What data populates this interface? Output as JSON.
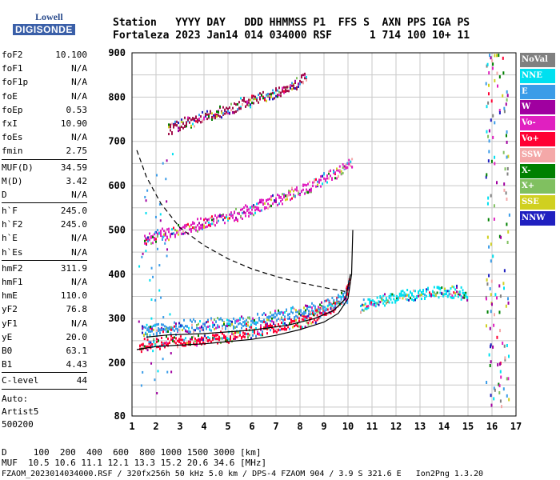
{
  "logo": {
    "line1": "Lowell",
    "line2": "DIGISONDE"
  },
  "header": {
    "line1": "Station   YYYY DAY   DDD HHMMSS P1  FFS S  AXN PPS IGA PS",
    "line2": "Fortaleza 2023 Jan14 014 034000 RSF      1 714 100 10+ 11"
  },
  "params": [
    {
      "name": "foF2",
      "value": "10.100"
    },
    {
      "name": "foF1",
      "value": "N/A"
    },
    {
      "name": "foF1p",
      "value": "N/A"
    },
    {
      "name": "foE",
      "value": "N/A"
    },
    {
      "name": "foEp",
      "value": "0.53"
    },
    {
      "name": "fxI",
      "value": "10.90"
    },
    {
      "name": "foEs",
      "value": "N/A"
    },
    {
      "name": "fmin",
      "value": "2.75"
    },
    {
      "sep": true
    },
    {
      "name": "MUF(D)",
      "value": "34.59"
    },
    {
      "name": "M(D)",
      "value": "3.42"
    },
    {
      "name": "D",
      "value": "N/A"
    },
    {
      "sep": true
    },
    {
      "name": "h`F",
      "value": "245.0"
    },
    {
      "name": "h`F2",
      "value": "245.0"
    },
    {
      "name": "h`E",
      "value": "N/A"
    },
    {
      "name": "h`Es",
      "value": "N/A"
    },
    {
      "sep": true
    },
    {
      "name": "hmF2",
      "value": "311.9"
    },
    {
      "name": "hmF1",
      "value": "N/A"
    },
    {
      "name": "hmE",
      "value": "110.0"
    },
    {
      "name": "yF2",
      "value": "76.8"
    },
    {
      "name": "yF1",
      "value": "N/A"
    },
    {
      "name": "yE",
      "value": "20.0"
    },
    {
      "name": "B0",
      "value": "63.1"
    },
    {
      "name": "B1",
      "value": "4.43"
    },
    {
      "sep": true
    },
    {
      "name": "C-level",
      "value": "44"
    },
    {
      "sep": true
    }
  ],
  "auto": [
    "Auto:",
    "Artist5",
    "500200"
  ],
  "bottom": {
    "d_line": "D     100  200  400  600  800 1000 1500 3000 [km]",
    "muf_line": "MUF  10.5 10.6 11.1 12.1 13.3 15.2 20.6 34.6 [MHz]",
    "file_line": "FZAOM_2023014034000.RSF / 320fx256h 50 kHz 5.0 km / DPS-4 FZAOM 904 / 3.9 S 321.6 E   Ion2Png 1.3.20"
  },
  "legend": [
    {
      "label": "NoVal",
      "color": "#808080"
    },
    {
      "label": "NNE",
      "color": "#00e0f0"
    },
    {
      "label": "E",
      "color": "#3a9ce8"
    },
    {
      "label": "W",
      "color": "#a000a0"
    },
    {
      "label": "Vo-",
      "color": "#e020c0"
    },
    {
      "label": "Vo+",
      "color": "#ff0033"
    },
    {
      "label": "SSW",
      "color": "#f4a8a8"
    },
    {
      "label": "X-",
      "color": "#008000"
    },
    {
      "label": "X+",
      "color": "#80c060"
    },
    {
      "label": "SSE",
      "color": "#d0d020"
    },
    {
      "label": "NNW",
      "color": "#2020c0"
    }
  ],
  "chart_data": {
    "type": "scatter",
    "xlim": [
      1,
      17
    ],
    "ylim": [
      80,
      900
    ],
    "x_ticks": [
      1,
      2,
      3,
      4,
      5,
      6,
      7,
      8,
      9,
      10,
      11,
      12,
      13,
      14,
      15,
      16,
      17
    ],
    "y_ticks": [
      80,
      200,
      300,
      400,
      500,
      600,
      700,
      800,
      900
    ],
    "grid": true,
    "legend_placement": "right",
    "traces": [
      {
        "name": "o-trace",
        "color": "#ff0033",
        "points": [
          [
            1.3,
            240
          ],
          [
            2,
            248
          ],
          [
            3,
            252
          ],
          [
            4,
            256
          ],
          [
            5,
            262
          ],
          [
            6,
            270
          ],
          [
            7,
            282
          ],
          [
            8,
            295
          ],
          [
            8.5,
            305
          ],
          [
            9,
            318
          ],
          [
            9.5,
            335
          ],
          [
            9.9,
            360
          ],
          [
            10.05,
            395
          ]
        ]
      },
      {
        "name": "x-trace",
        "color": "#3a9ce8",
        "points": [
          [
            1.4,
            275
          ],
          [
            2,
            280
          ],
          [
            3,
            284
          ],
          [
            4,
            288
          ],
          [
            5,
            292
          ],
          [
            6,
            298
          ],
          [
            7,
            306
          ],
          [
            8,
            318
          ],
          [
            9,
            330
          ],
          [
            9.5,
            340
          ],
          [
            10,
            350
          ]
        ]
      },
      {
        "name": "2nd-hop",
        "color": "#e020c0",
        "points": [
          [
            1.5,
            480
          ],
          [
            2.5,
            495
          ],
          [
            3.5,
            510
          ],
          [
            4.5,
            525
          ],
          [
            5.5,
            540
          ],
          [
            6.5,
            560
          ],
          [
            7.5,
            580
          ],
          [
            8.5,
            605
          ],
          [
            9.5,
            630
          ],
          [
            10.2,
            660
          ]
        ]
      },
      {
        "name": "3rd-hop",
        "color": "#a0104a",
        "points": [
          [
            2.5,
            730
          ],
          [
            3.5,
            750
          ],
          [
            4.5,
            765
          ],
          [
            5.5,
            785
          ],
          [
            6.5,
            805
          ],
          [
            7.5,
            825
          ],
          [
            8.3,
            850
          ]
        ]
      },
      {
        "name": "spread-f",
        "color": "#00e0f0",
        "points": [
          [
            10.5,
            330
          ],
          [
            11,
            340
          ],
          [
            11.5,
            345
          ],
          [
            12,
            350
          ],
          [
            12.5,
            355
          ],
          [
            13.5,
            360
          ],
          [
            14,
            365
          ],
          [
            14.5,
            362
          ],
          [
            15,
            355
          ]
        ]
      }
    ],
    "curves": [
      {
        "name": "profile",
        "style": "solid",
        "points": [
          [
            1.2,
            230
          ],
          [
            2,
            237
          ],
          [
            3,
            240
          ],
          [
            4,
            243
          ],
          [
            5,
            248
          ],
          [
            6,
            253
          ],
          [
            7,
            262
          ],
          [
            8,
            275
          ],
          [
            9,
            292
          ],
          [
            9.6,
            312
          ],
          [
            10,
            345
          ],
          [
            10.15,
            400
          ],
          [
            10.2,
            500
          ]
        ]
      },
      {
        "name": "profile-2",
        "style": "solid",
        "points": [
          [
            1.6,
            258
          ],
          [
            2.5,
            263
          ],
          [
            4,
            266
          ],
          [
            6,
            274
          ],
          [
            7.5,
            285
          ],
          [
            8.6,
            300
          ],
          [
            9.4,
            318
          ],
          [
            9.9,
            345
          ],
          [
            10.1,
            400
          ]
        ]
      },
      {
        "name": "dashed",
        "style": "dashed",
        "points": [
          [
            1.2,
            680
          ],
          [
            1.6,
            620
          ],
          [
            2.2,
            560
          ],
          [
            3,
            505
          ],
          [
            4,
            465
          ],
          [
            5,
            435
          ],
          [
            6,
            412
          ],
          [
            7,
            395
          ],
          [
            8,
            381
          ],
          [
            9,
            370
          ],
          [
            10,
            360
          ]
        ]
      }
    ]
  }
}
